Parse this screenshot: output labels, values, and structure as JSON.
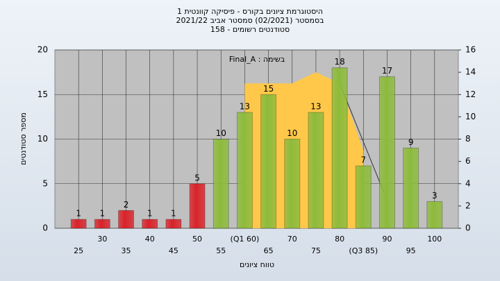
{
  "chart_data": {
    "type": "bar",
    "title_lines": [
      "היסטוגרמת ציונים בקורס - פיסיקה קוונטית 1",
      "בסמסטר  (02/2021)  סמסטר אביב 2021/22",
      "סטודנטים רשומים - 158"
    ],
    "annotation": "בשימה : Final_A",
    "ylabel": "מספר סטודנטים",
    "xlabel": "טווח ציונים",
    "x": [
      25,
      30,
      35,
      40,
      45,
      50,
      55,
      60,
      65,
      70,
      75,
      80,
      85,
      90,
      95,
      100
    ],
    "values": [
      1,
      1,
      2,
      1,
      1,
      5,
      10,
      13,
      15,
      10,
      13,
      18,
      7,
      17,
      9,
      3
    ],
    "colors": [
      "#d9232a",
      "#d9232a",
      "#d9232a",
      "#d9232a",
      "#d9232a",
      "#d9232a",
      "#8dbb3c",
      "#8dbb3c",
      "#8dbb3c",
      "#8dbb3c",
      "#8dbb3c",
      "#8dbb3c",
      "#8dbb3c",
      "#8dbb3c",
      "#8dbb3c",
      "#8dbb3c"
    ],
    "xlim": [
      20,
      105
    ],
    "xticks": [
      25,
      30,
      35,
      40,
      45,
      50,
      55,
      {
        "value": 60,
        "label": "(Q1 60)"
      },
      65,
      70,
      75,
      80,
      {
        "value": 85,
        "label": "(Q3 85)"
      },
      90,
      95,
      100
    ],
    "ylim": [
      0,
      20
    ],
    "yticks": [
      0,
      5,
      10,
      15,
      20
    ],
    "y2lim": [
      0,
      16
    ],
    "y2ticks": [
      0,
      2,
      4,
      6,
      8,
      10,
      12,
      14,
      16
    ],
    "grid": true,
    "area": {
      "color": "#ffc84a",
      "axis": "y2",
      "x": [
        60,
        60,
        70,
        75,
        80,
        85,
        85
      ],
      "values": [
        0,
        13,
        13,
        14,
        13,
        7,
        0
      ]
    },
    "line": {
      "color": "#333333",
      "axis": "y2",
      "x": [
        80,
        90
      ],
      "values": [
        13,
        2.5
      ]
    }
  }
}
